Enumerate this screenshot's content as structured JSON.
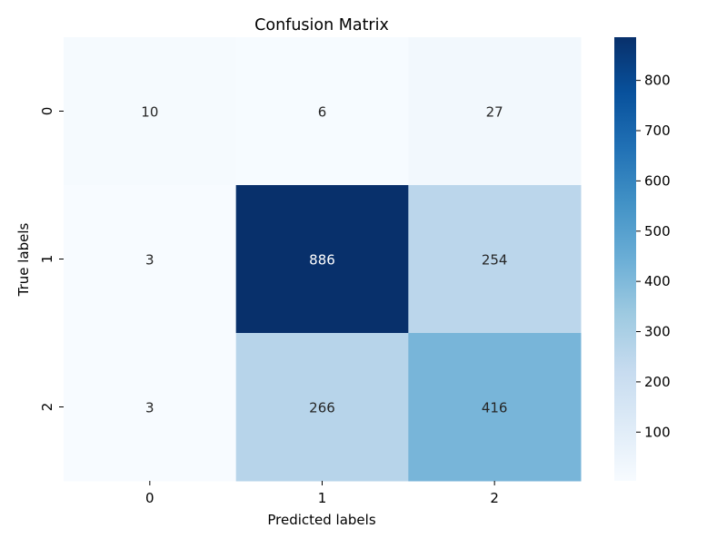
{
  "chart_data": {
    "type": "heatmap",
    "title": "Confusion Matrix",
    "xlabel": "Predicted labels",
    "ylabel": "True labels",
    "x_categories": [
      "0",
      "1",
      "2"
    ],
    "y_categories": [
      "0",
      "1",
      "2"
    ],
    "values": [
      [
        10,
        6,
        27
      ],
      [
        3,
        886,
        254
      ],
      [
        3,
        266,
        416
      ]
    ],
    "colormap": "Blues",
    "colorbar": {
      "range": [
        3,
        886
      ],
      "ticks": [
        100,
        200,
        300,
        400,
        500,
        600,
        700,
        800
      ]
    },
    "grid": false
  }
}
